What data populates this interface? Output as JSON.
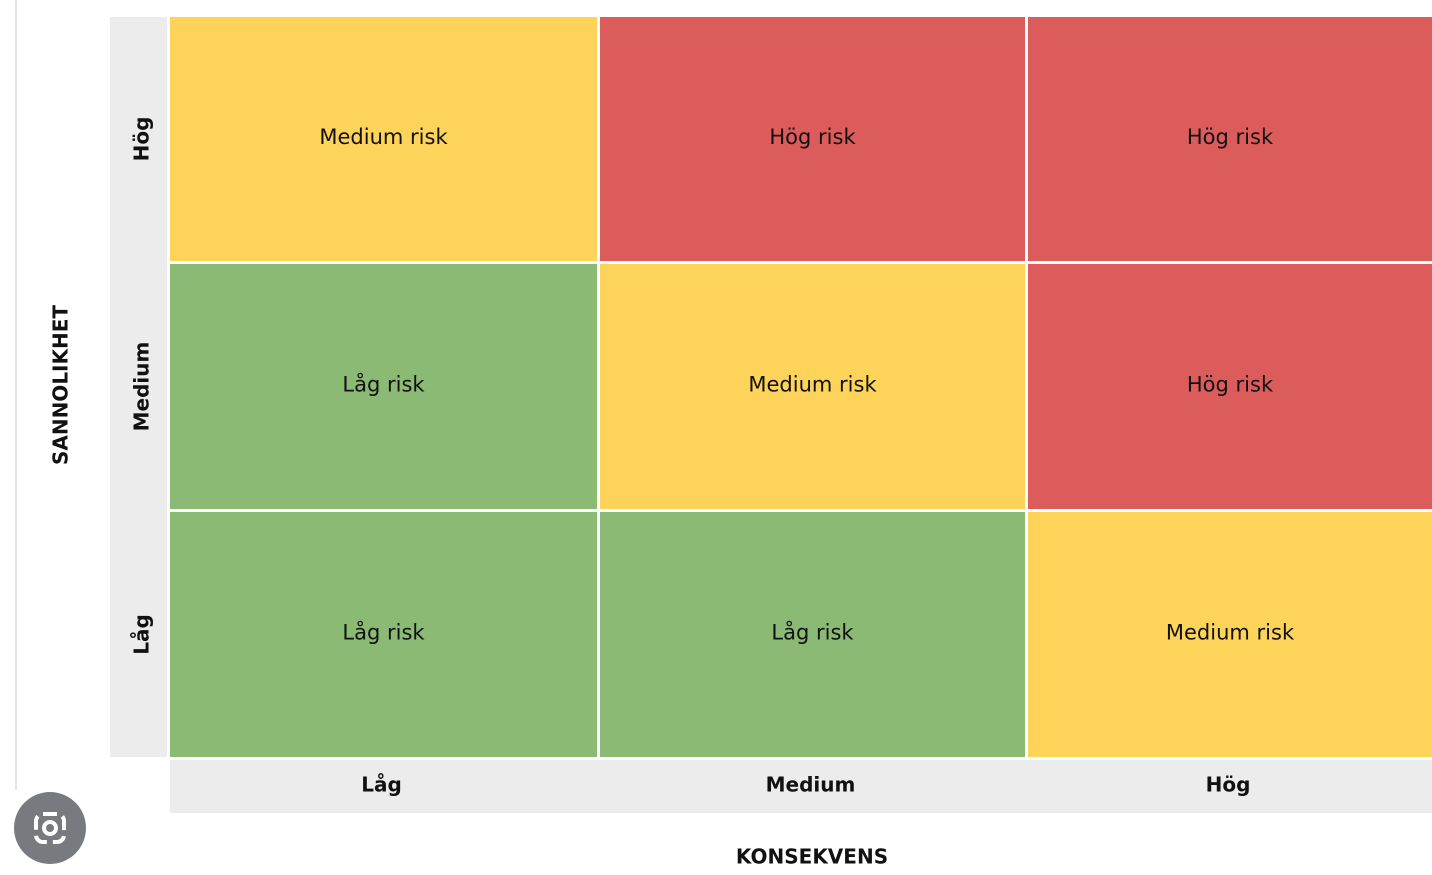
{
  "y_axis": {
    "label": "SANNOLIKHET",
    "levels": [
      "Hög",
      "Medium",
      "Låg"
    ]
  },
  "x_axis": {
    "label": "KONSEKVENS",
    "levels": [
      "Låg",
      "Medium",
      "Hög"
    ]
  },
  "cells": [
    [
      {
        "label": "Medium risk",
        "color": "#fdd35a"
      },
      {
        "label": "Hög risk",
        "color": "#dc5b5b"
      },
      {
        "label": "Hög risk",
        "color": "#dc5b5b"
      }
    ],
    [
      {
        "label": "Låg risk",
        "color": "#8aba73"
      },
      {
        "label": "Medium risk",
        "color": "#fdd35a"
      },
      {
        "label": "Hög risk",
        "color": "#dc5b5b"
      }
    ],
    [
      {
        "label": "Låg risk",
        "color": "#8aba73"
      },
      {
        "label": "Låg risk",
        "color": "#8aba73"
      },
      {
        "label": "Medium risk",
        "color": "#fdd35a"
      }
    ]
  ]
}
